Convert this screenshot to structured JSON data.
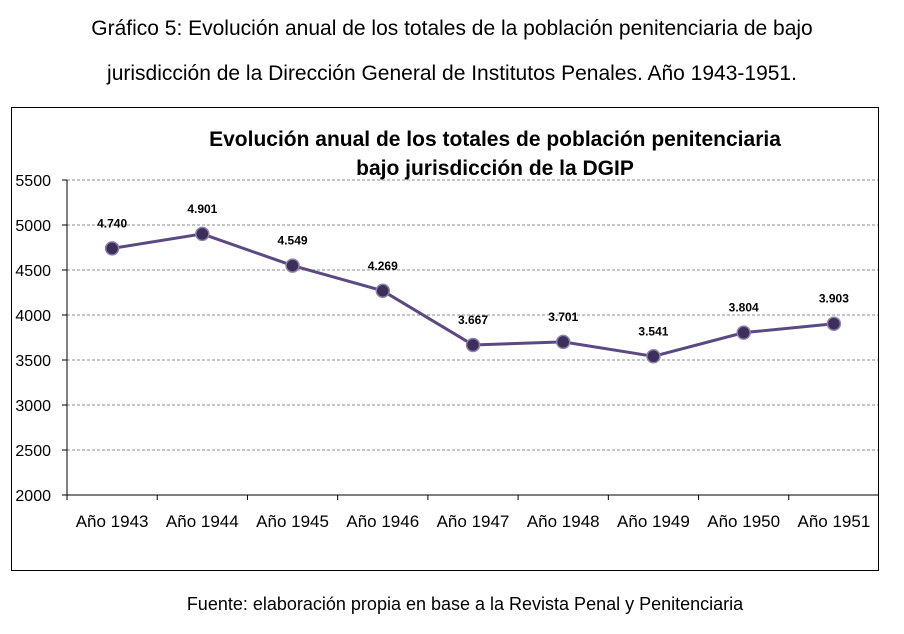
{
  "caption": {
    "line1": "Gráfico 5: Evolución anual de los totales de la población penitenciaria de bajo",
    "line2": "jurisdicción de la Dirección General de Institutos Penales. Año 1943-1951."
  },
  "source": "Fuente: elaboración propia en base a la Revista Penal y Penitenciaria",
  "colors": {
    "series": "#5b4a82",
    "marker": "#3d2f5c",
    "grid": "#8c8c8c"
  },
  "chart_data": {
    "type": "line",
    "title": [
      "Evolución anual de los totales de población penitenciaria",
      "bajo jurisdicción de la DGIP"
    ],
    "categories": [
      "Año 1943",
      "Año 1944",
      "Año 1945",
      "Año 1946",
      "Año 1947",
      "Año 1948",
      "Año 1949",
      "Año 1950",
      "Año 1951"
    ],
    "values": [
      4740,
      4901,
      4549,
      4269,
      3667,
      3701,
      3541,
      3804,
      3903
    ],
    "data_labels": [
      "4.740",
      "4.901",
      "4.549",
      "4.269",
      "3.667",
      "3.701",
      "3.541",
      "3.804",
      "3.903"
    ],
    "yticks": [
      "2000",
      "2500",
      "3000",
      "3500",
      "4000",
      "4500",
      "5000",
      "5500"
    ],
    "ylim": [
      2000,
      5500
    ],
    "grid": true,
    "legend": "none"
  }
}
